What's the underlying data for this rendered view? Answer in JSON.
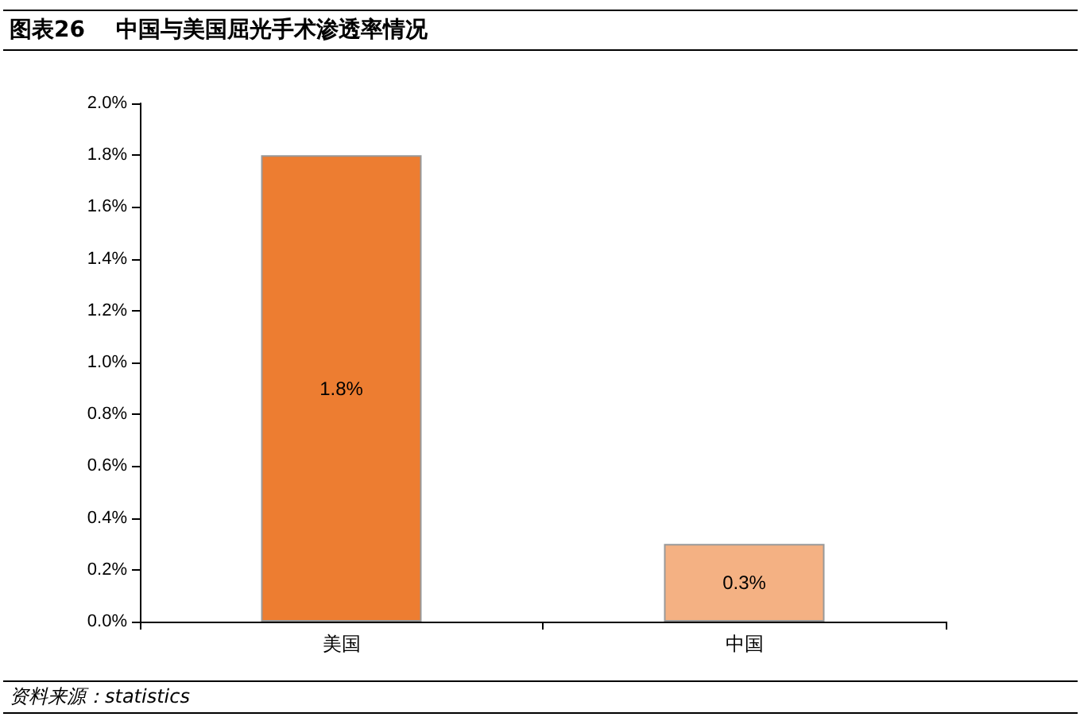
{
  "chart_data": {
    "type": "bar",
    "title": "图表26    中国与美国屈光手术渗透率情况",
    "categories": [
      "美国",
      "中国"
    ],
    "values": [
      1.8,
      0.3
    ],
    "colors": [
      "#ed7d31",
      "#f4b183"
    ],
    "value_labels": [
      "1.8%",
      "0.3%"
    ],
    "ylim": [
      0,
      2.0
    ],
    "yticks": [
      {
        "value": 0,
        "label": "0.0%"
      },
      {
        "value": 0.2,
        "label": "0.2%"
      },
      {
        "value": 0.4,
        "label": "0.4%"
      },
      {
        "value": 0.6,
        "label": "0.6%"
      },
      {
        "value": 0.8,
        "label": "0.8%"
      },
      {
        "value": 1.0,
        "label": "1.0%"
      },
      {
        "value": 1.2,
        "label": "1.2%"
      },
      {
        "value": 1.4,
        "label": "1.4%"
      },
      {
        "value": 1.6,
        "label": "1.6%"
      },
      {
        "value": 1.8,
        "label": "1.8%"
      },
      {
        "value": 2.0,
        "label": "2.0%"
      }
    ],
    "grid": false,
    "annotations": [
      "资料来源：statistics"
    ]
  }
}
